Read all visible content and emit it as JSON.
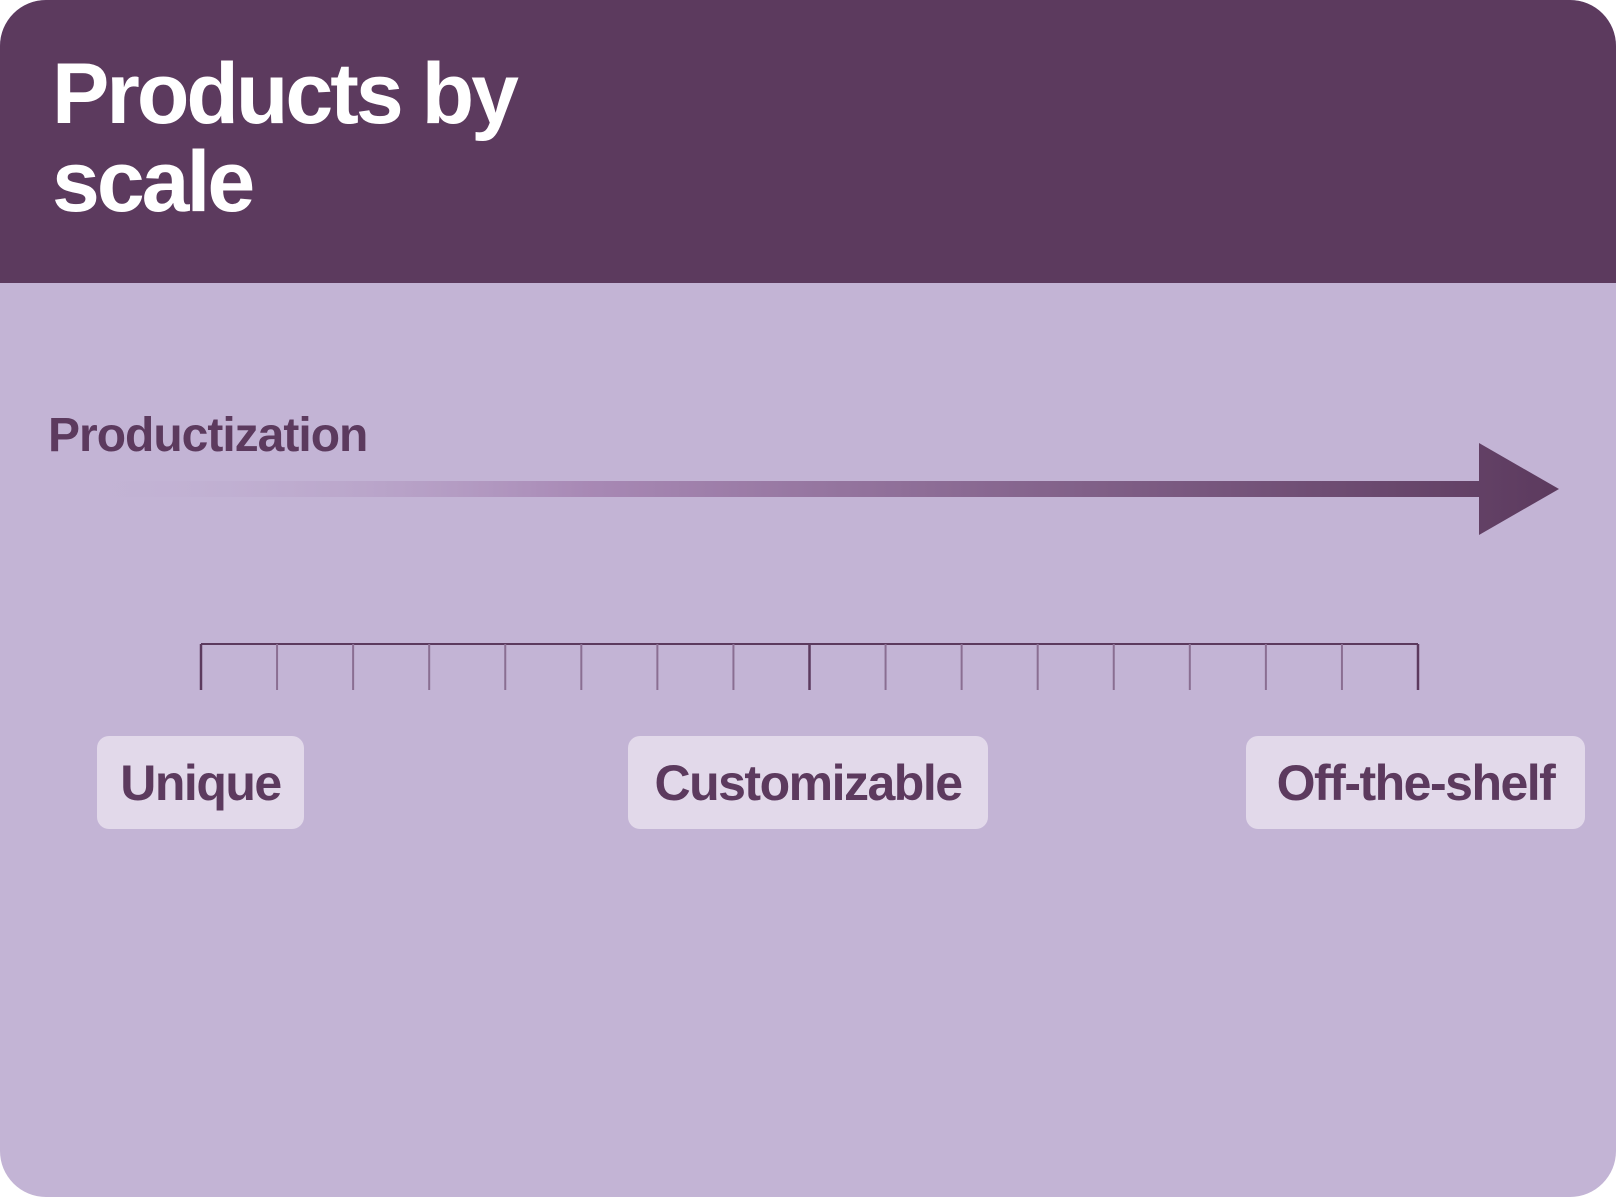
{
  "header": {
    "title": "Products by scale"
  },
  "axis": {
    "label": "Productization"
  },
  "scale": {
    "tick_count": 17,
    "labels": [
      "Unique",
      "Customizable",
      "Off-the-shelf"
    ]
  },
  "colors": {
    "header_bg": "#5c3a5e",
    "body_bg": "#c3b4d5",
    "accent": "#5c3a5e",
    "pill_bg": "#e2d9ea",
    "title_text": "#ffffff"
  }
}
